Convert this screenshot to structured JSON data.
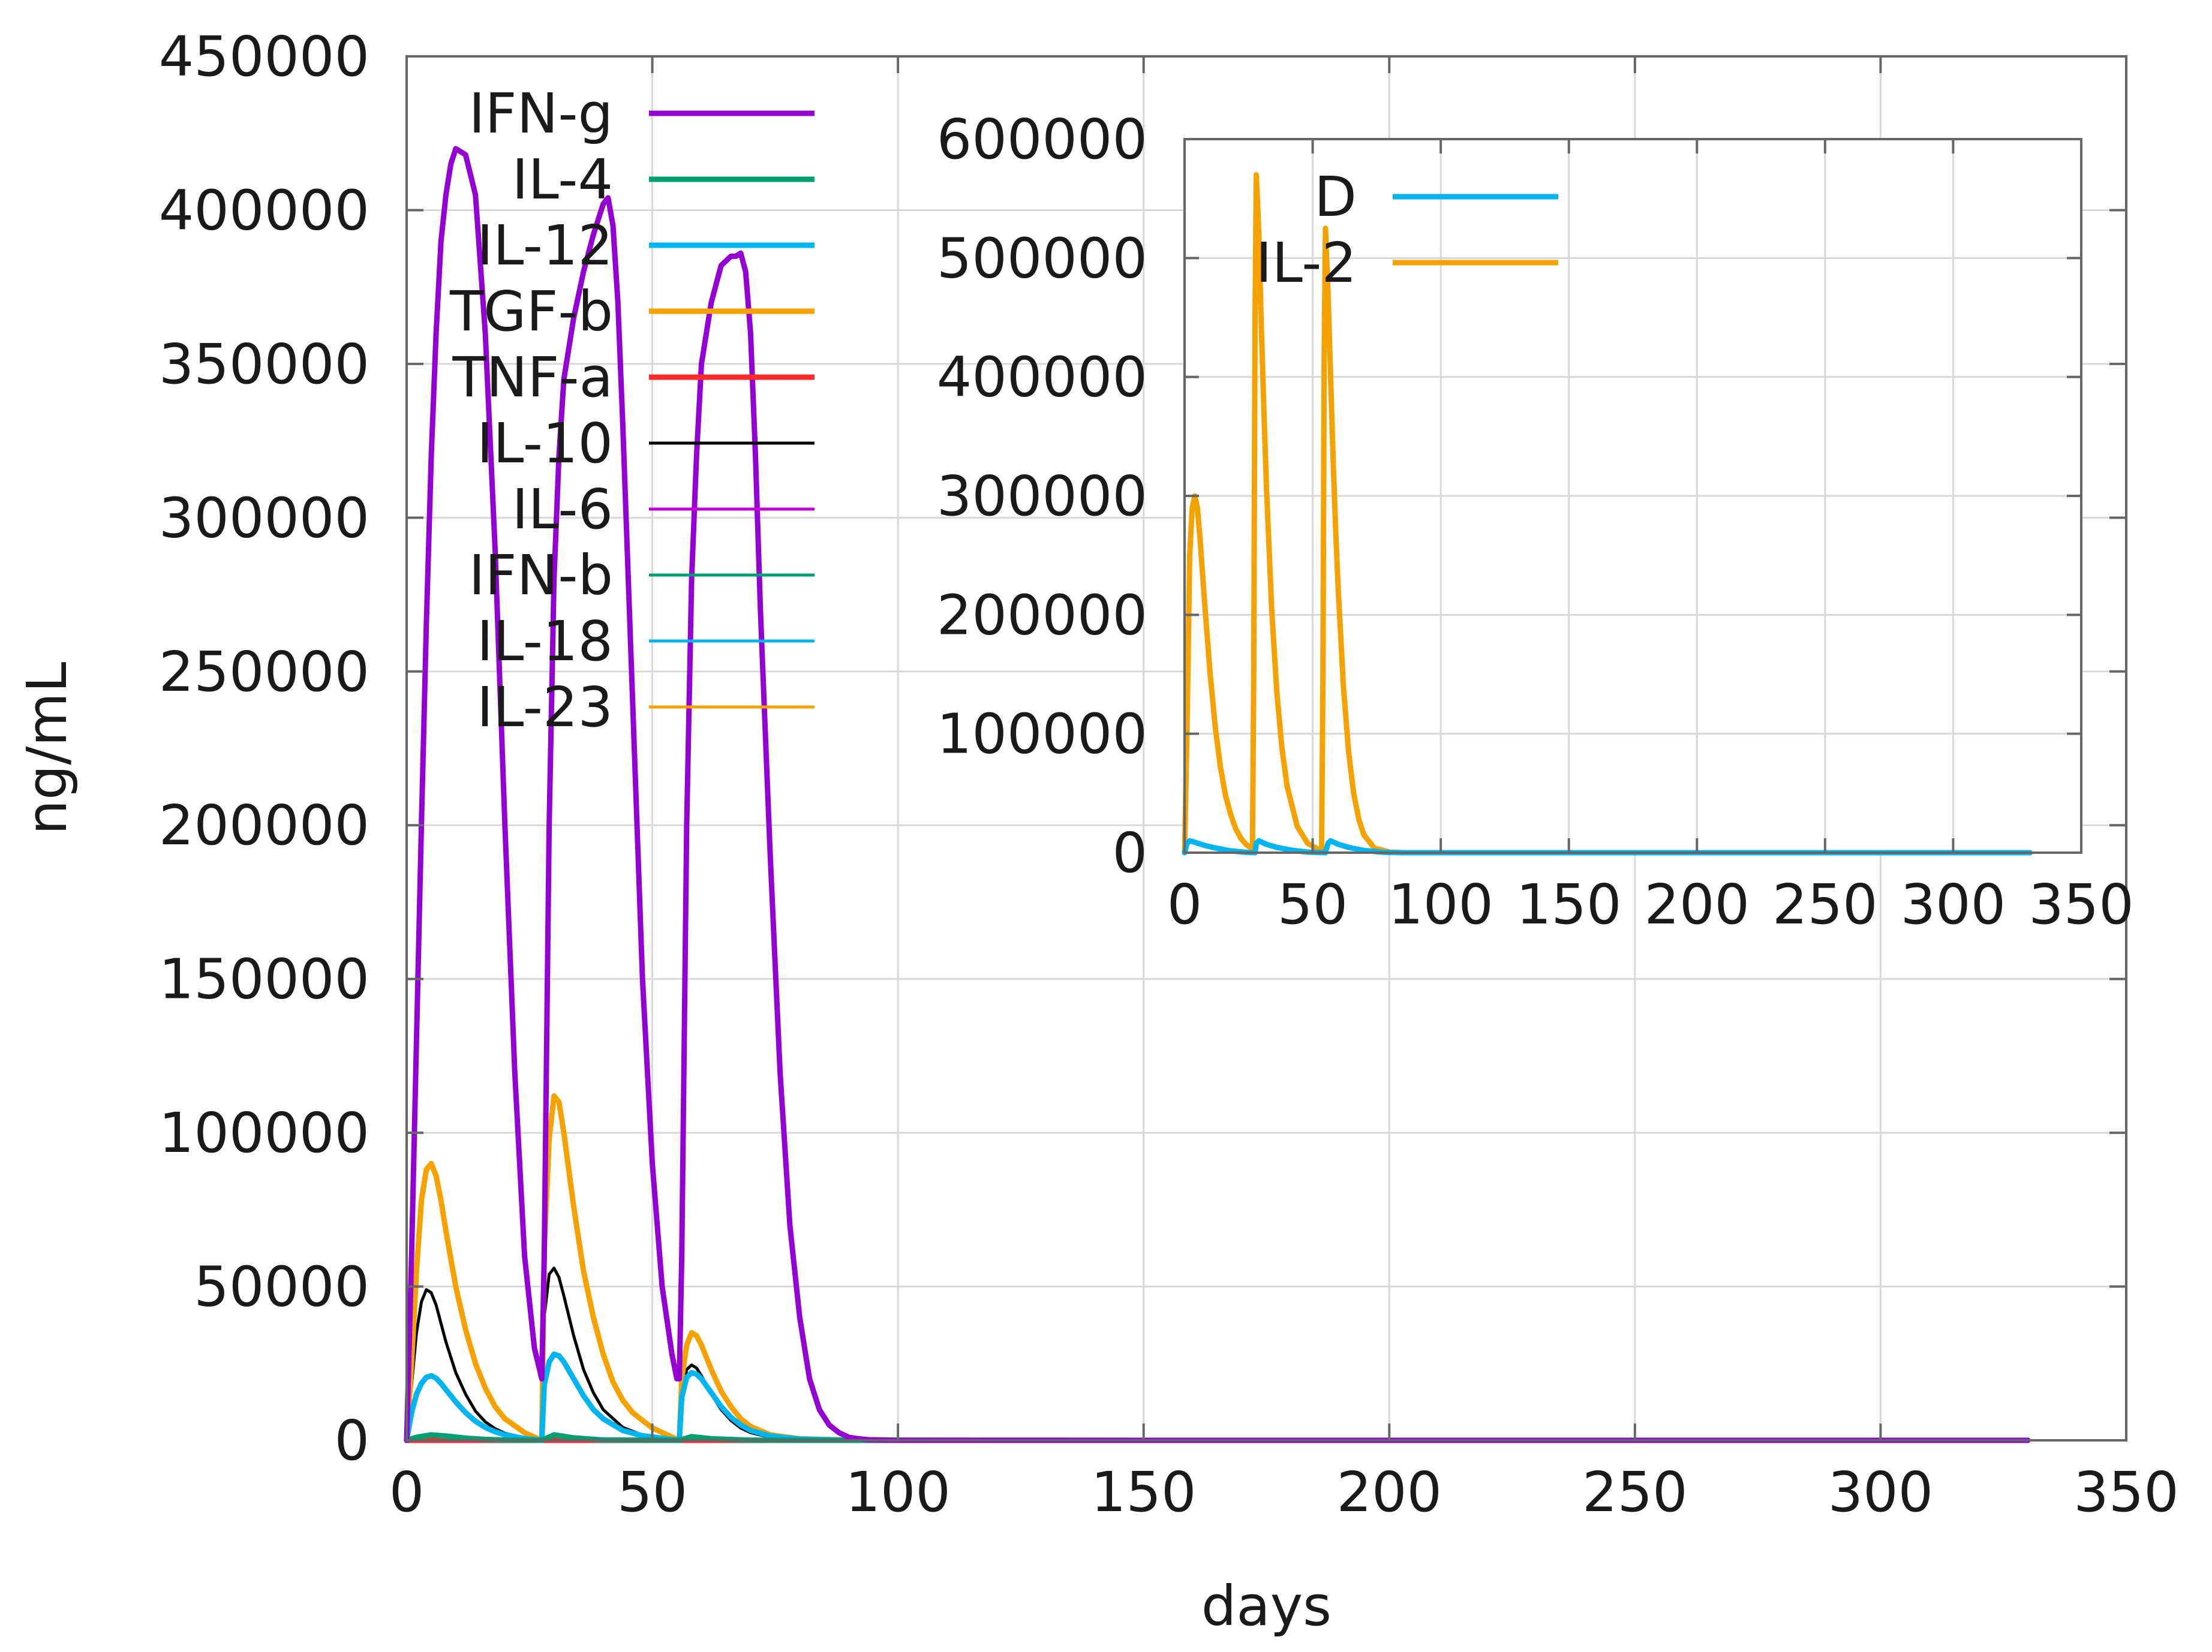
{
  "chart_data": [
    {
      "type": "line",
      "title": "",
      "xlabel": "days",
      "ylabel": "ng/mL",
      "xlim": [
        0,
        350
      ],
      "ylim": [
        0,
        450000
      ],
      "xticks": [
        "0",
        "50",
        "100",
        "150",
        "200",
        "250",
        "300",
        "350"
      ],
      "yticks": [
        "0",
        "50000",
        "100000",
        "150000",
        "200000",
        "250000",
        "300000",
        "350000",
        "400000",
        "450000"
      ],
      "grid": true,
      "legend_position": "top-left",
      "series": [
        {
          "name": "IFN-g",
          "color": "#9400d3",
          "thick": true,
          "x": [
            0,
            1,
            2,
            3,
            4,
            5,
            6,
            7,
            8,
            9,
            10,
            12,
            14,
            16,
            18,
            20,
            22,
            24,
            26,
            27.5,
            28,
            29,
            30,
            31,
            32,
            34,
            36,
            38,
            40,
            41,
            42,
            43,
            44,
            46,
            48,
            50,
            52,
            54,
            55,
            55.5,
            56,
            57,
            58,
            59,
            60,
            62,
            64,
            66,
            67,
            68,
            69,
            70,
            71,
            72,
            74,
            76,
            78,
            80,
            82,
            84,
            86,
            88,
            90,
            92,
            94,
            100,
            110,
            150,
            200,
            250,
            300,
            330
          ],
          "y": [
            0,
            60000,
            130000,
            200000,
            265000,
            320000,
            360000,
            390000,
            405000,
            415000,
            420000,
            418000,
            405000,
            360000,
            290000,
            200000,
            120000,
            60000,
            30000,
            20000,
            60000,
            200000,
            280000,
            320000,
            345000,
            365000,
            380000,
            392000,
            402000,
            404000,
            395000,
            370000,
            330000,
            240000,
            150000,
            90000,
            50000,
            28000,
            20000,
            20000,
            60000,
            200000,
            280000,
            320000,
            350000,
            370000,
            382000,
            385000,
            385000,
            386000,
            380000,
            360000,
            320000,
            270000,
            190000,
            120000,
            70000,
            40000,
            20000,
            10000,
            5000,
            2500,
            1000,
            500,
            200,
            0,
            0,
            0,
            0,
            0,
            0,
            0
          ]
        },
        {
          "name": "IL-4",
          "color": "#009e73",
          "thick": true,
          "x": [
            0,
            2,
            5,
            8,
            12,
            16,
            20,
            27.5,
            30,
            34,
            40,
            55.5,
            58,
            62,
            70,
            80,
            150,
            330
          ],
          "y": [
            0,
            1000,
            1800,
            1400,
            700,
            300,
            100,
            0,
            1800,
            800,
            100,
            0,
            1200,
            500,
            50,
            0,
            0,
            0
          ]
        },
        {
          "name": "IL-12",
          "color": "#00b4f0",
          "thick": true,
          "x": [
            0,
            1,
            2,
            3,
            4,
            5,
            6,
            7,
            8,
            10,
            12,
            14,
            16,
            18,
            20,
            24,
            27.5,
            28,
            29,
            30,
            31,
            32,
            34,
            36,
            38,
            40,
            44,
            48,
            55.5,
            56,
            57,
            58,
            59,
            60,
            62,
            64,
            66,
            68,
            70,
            74,
            80,
            90,
            150,
            330
          ],
          "y": [
            0,
            9000,
            15000,
            18500,
            20500,
            21000,
            20200,
            18500,
            16500,
            12500,
            9000,
            6200,
            4200,
            2800,
            1800,
            600,
            0,
            18000,
            25500,
            28000,
            27500,
            25500,
            20000,
            14500,
            10000,
            7000,
            3200,
            1500,
            0,
            14000,
            20500,
            22000,
            21500,
            20000,
            15500,
            11000,
            7500,
            5000,
            3200,
            1400,
            400,
            50,
            0,
            0
          ]
        },
        {
          "name": "TGF-b",
          "color": "#f5a200",
          "thick": true,
          "x": [
            0,
            1,
            2,
            3,
            4,
            5,
            6,
            7,
            8,
            10,
            12,
            14,
            16,
            18,
            20,
            24,
            27.5,
            28,
            29,
            30,
            31,
            32,
            33,
            34,
            36,
            38,
            40,
            42,
            44,
            46,
            50,
            55.5,
            56,
            57,
            58,
            59,
            60,
            62,
            64,
            66,
            68,
            70,
            74,
            80,
            90,
            150,
            330
          ],
          "y": [
            0,
            25000,
            55000,
            78000,
            88000,
            90000,
            86000,
            78000,
            68000,
            50000,
            36000,
            25000,
            17000,
            11000,
            7000,
            2500,
            0,
            62000,
            98000,
            112000,
            110000,
            100000,
            88000,
            76000,
            55000,
            40000,
            28000,
            19000,
            13000,
            9000,
            4000,
            0,
            20000,
            31000,
            35000,
            34000,
            31000,
            23000,
            16000,
            11000,
            7000,
            4500,
            1800,
            500,
            50,
            0,
            0
          ]
        },
        {
          "name": "TNF-a",
          "color": "#ff2a2a",
          "thick": true,
          "x": [
            0,
            330
          ],
          "y": [
            0,
            0
          ]
        },
        {
          "name": "IL-10",
          "color": "#000000",
          "thick": false,
          "x": [
            0,
            1,
            2,
            3,
            4,
            5,
            6,
            7,
            8,
            10,
            12,
            14,
            16,
            18,
            20,
            24,
            27.5,
            28,
            29,
            30,
            31,
            32,
            34,
            36,
            38,
            40,
            44,
            48,
            55.5,
            56,
            57,
            58,
            59,
            60,
            62,
            64,
            66,
            68,
            70,
            74,
            80,
            90,
            150,
            330
          ],
          "y": [
            0,
            18000,
            35000,
            45000,
            49000,
            48000,
            44000,
            38000,
            32000,
            22000,
            15000,
            9500,
            6000,
            3800,
            2300,
            800,
            0,
            40000,
            54000,
            56000,
            53000,
            47000,
            34000,
            23000,
            15500,
            10000,
            4200,
            1700,
            0,
            16000,
            23000,
            24500,
            23500,
            21000,
            15000,
            10000,
            6500,
            4000,
            2500,
            1000,
            250,
            30,
            0,
            0
          ]
        },
        {
          "name": "IL-6",
          "color": "#c000d6",
          "thick": false,
          "x": [
            0,
            330
          ],
          "y": [
            0,
            0
          ]
        },
        {
          "name": "IFN-b",
          "color": "#009e73",
          "thick": false,
          "x": [
            0,
            330
          ],
          "y": [
            0,
            0
          ]
        },
        {
          "name": "IL-18",
          "color": "#00b4f0",
          "thick": false,
          "x": [
            0,
            330
          ],
          "y": [
            0,
            0
          ]
        },
        {
          "name": "IL-23",
          "color": "#f5a200",
          "thick": false,
          "x": [
            0,
            330
          ],
          "y": [
            0,
            0
          ]
        }
      ]
    },
    {
      "type": "line",
      "title": "",
      "xlabel": "",
      "ylabel": "",
      "xlim": [
        0,
        350
      ],
      "ylim": [
        0,
        600000
      ],
      "xticks": [
        "0",
        "50",
        "100",
        "150",
        "200",
        "250",
        "300",
        "350"
      ],
      "yticks": [
        "0",
        "100000",
        "200000",
        "300000",
        "400000",
        "500000",
        "600000"
      ],
      "grid": true,
      "legend_position": "top-left",
      "series": [
        {
          "name": "D",
          "color": "#00b4f0",
          "thick": true,
          "x": [
            0,
            1,
            2,
            3,
            5,
            8,
            12,
            18,
            24,
            27.5,
            28,
            29,
            30,
            32,
            36,
            42,
            48,
            55,
            56,
            57,
            58,
            60,
            64,
            70,
            78,
            85,
            150,
            330
          ],
          "y": [
            0,
            8000,
            10000,
            9500,
            8000,
            6000,
            4000,
            1500,
            300,
            0,
            8000,
            10000,
            9000,
            7000,
            4500,
            2000,
            500,
            0,
            8000,
            10000,
            9000,
            7000,
            4500,
            1800,
            300,
            0,
            0,
            0
          ]
        },
        {
          "name": "IL-2",
          "color": "#f5a200",
          "thick": true,
          "x": [
            0,
            1,
            2,
            3,
            4,
            5,
            6,
            7,
            8,
            10,
            12,
            14,
            16,
            18,
            20,
            22,
            24,
            26.5,
            27,
            27.5,
            28,
            29,
            30,
            31,
            32,
            34,
            36,
            38,
            40,
            44,
            48,
            52,
            53.5,
            54,
            54.5,
            55,
            56,
            57,
            58,
            59,
            60,
            62,
            64,
            66,
            68,
            70,
            74,
            80,
            85,
            100,
            150,
            330
          ],
          "y": [
            0,
            110000,
            250000,
            290000,
            300000,
            290000,
            265000,
            235000,
            205000,
            150000,
            105000,
            72000,
            48000,
            32000,
            20000,
            12000,
            7000,
            3000,
            150000,
            450000,
            570000,
            520000,
            440000,
            370000,
            305000,
            205000,
            135000,
            88000,
            56000,
            22000,
            8000,
            3000,
            2000,
            150000,
            420000,
            525000,
            470000,
            400000,
            330000,
            270000,
            220000,
            140000,
            85000,
            50000,
            28000,
            15000,
            4000,
            500,
            0,
            0,
            0,
            0
          ]
        }
      ]
    }
  ]
}
